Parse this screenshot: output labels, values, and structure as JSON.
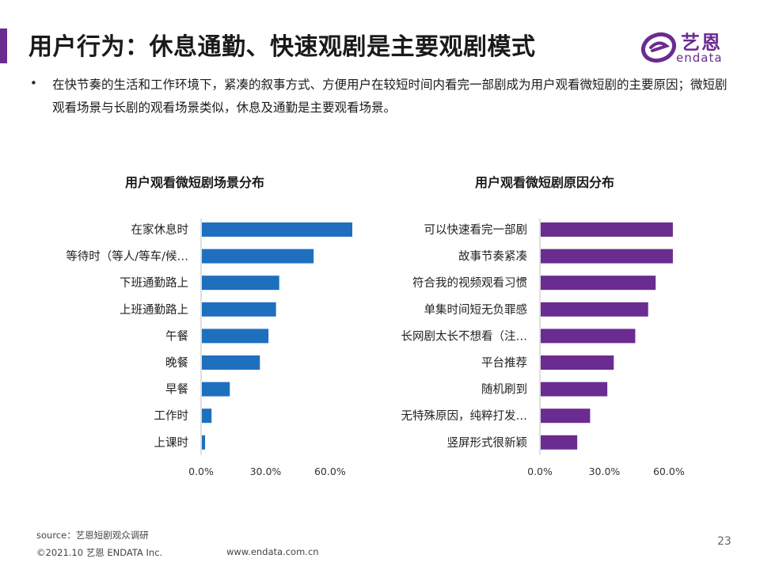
{
  "header": {
    "title": "用户行为：休息通勤、快速观剧是主要观剧模式",
    "logo_text": "艺恩",
    "logo_sub": "endata",
    "accent_color": "#6a2c91"
  },
  "description": {
    "bullet": "•",
    "text": "在快节奏的生活和工作环境下，紧凑的叙事方式、方便用户在较短时间内看完一部剧成为用户观看微短剧的主要原因；微短剧观看场景与长剧的观看场景类似，休息及通勤是主要观看场景。"
  },
  "chart_data": [
    {
      "type": "bar",
      "orientation": "horizontal",
      "title": "用户观看微短剧场景分布",
      "color": "#1f6fbf",
      "categories": [
        "在家休息时",
        "等待时（等人/等车/候…",
        "下班通勤路上",
        "上班通勤路上",
        "午餐",
        "晚餐",
        "早餐",
        "工作时",
        "上课时"
      ],
      "values": [
        70.0,
        52.0,
        36.0,
        34.5,
        31.0,
        27.0,
        13.0,
        4.5,
        1.5
      ],
      "xlim": [
        0,
        70
      ],
      "ticks": [
        0,
        30,
        60
      ],
      "tick_labels": [
        "0.0%",
        "30.0%",
        "60.0%"
      ],
      "xlabel": "",
      "ylabel": ""
    },
    {
      "type": "bar",
      "orientation": "horizontal",
      "title": "用户观看微短剧原因分布",
      "color": "#6a2c91",
      "categories": [
        "可以快速看完一部剧",
        "故事节奏紧凑",
        "符合我的视频观看习惯",
        "单集时间短无负罪感",
        "长网剧太长不想看（注…",
        "平台推荐",
        "随机刷到",
        "无特殊原因，纯粹打发…",
        "竖屏形式很新颖"
      ],
      "values": [
        61.5,
        61.5,
        53.5,
        50.0,
        44.0,
        34.0,
        31.0,
        23.0,
        17.0
      ],
      "xlim": [
        0,
        70
      ],
      "ticks": [
        0,
        30,
        60
      ],
      "tick_labels": [
        "0.0%",
        "30.0%",
        "60.0%"
      ],
      "xlabel": "",
      "ylabel": ""
    }
  ],
  "footer": {
    "source": "source：艺恩短剧观众调研",
    "copyright": "©2021.10 艺恩 ENDATA Inc.",
    "website": "www.endata.com.cn",
    "page": "23"
  }
}
